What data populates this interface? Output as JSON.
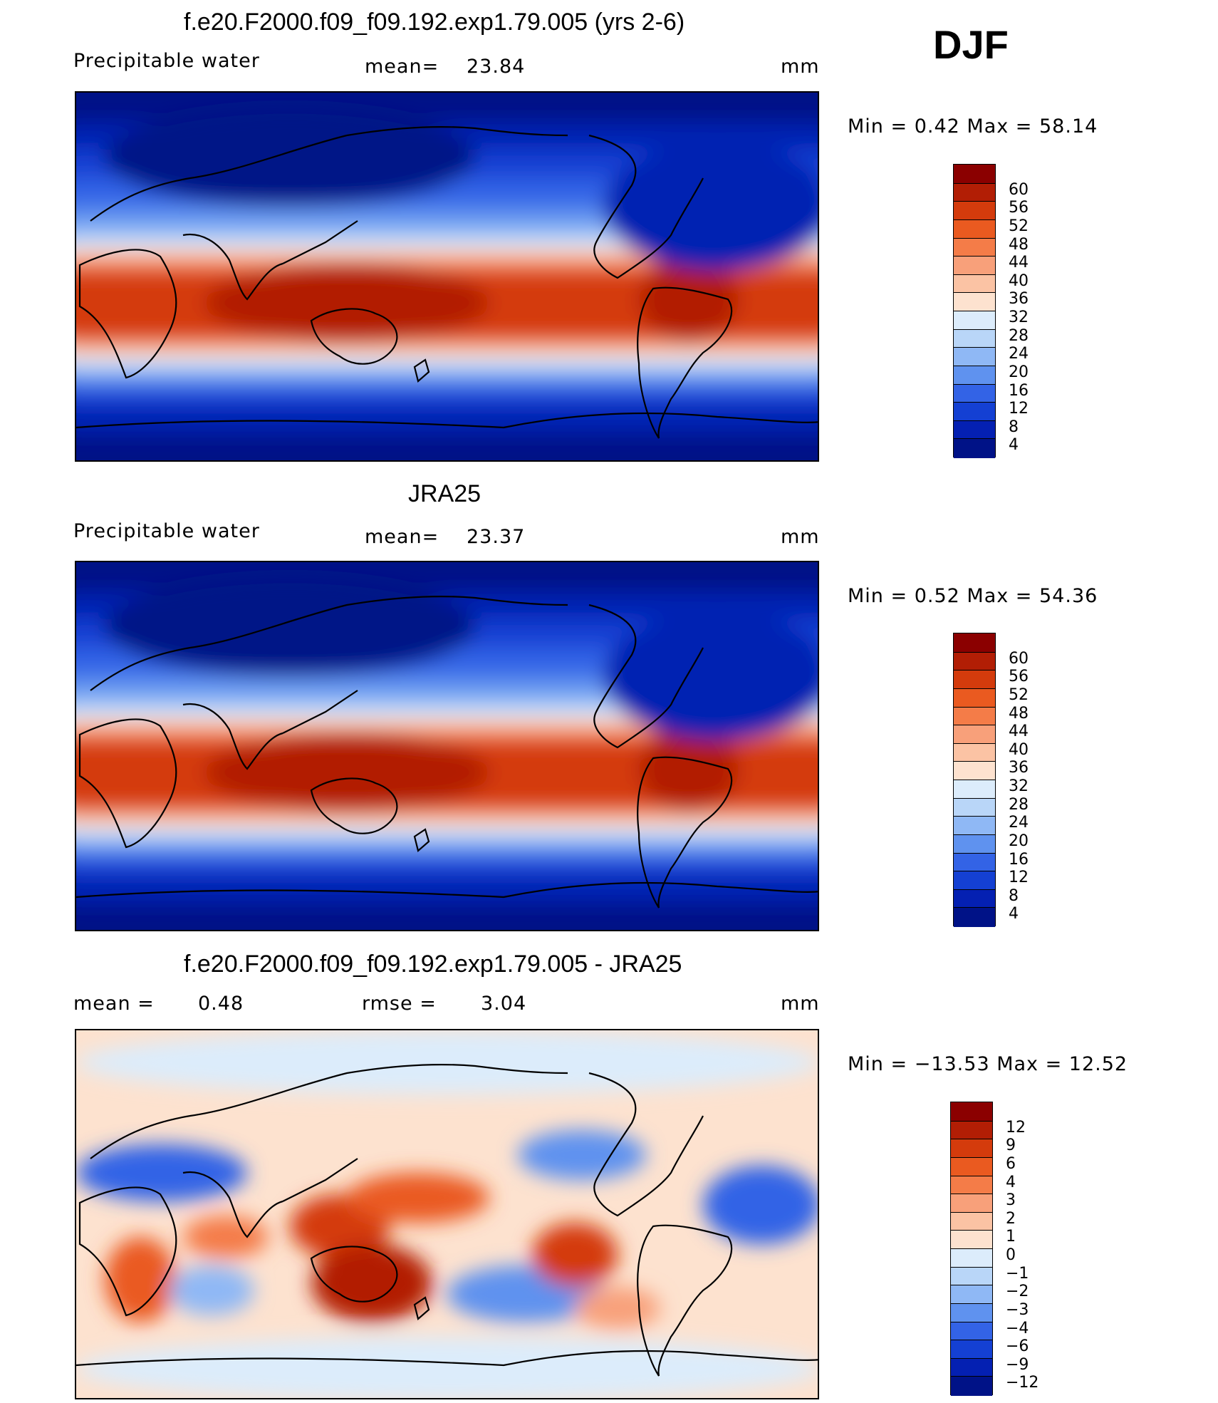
{
  "season": "DJF",
  "panels": [
    {
      "id": "model",
      "title": "f.e20.F2000.f09_f09.192.exp1.79.005 (yrs 2-6)",
      "left_label": "Precipitable  water",
      "mid_label": "mean=",
      "mid_value": "23.84",
      "units": "mm",
      "minmax_text": "Min  =     0.42  Max  =    58.14",
      "colorbar_labels": [
        "60",
        "56",
        "52",
        "48",
        "44",
        "40",
        "36",
        "32",
        "28",
        "24",
        "20",
        "16",
        "12",
        "8",
        "4"
      ],
      "colorbar_colors": [
        "#8b0000",
        "#b21e05",
        "#d43b0c",
        "#ea5a20",
        "#f47c48",
        "#f8a07a",
        "#fbc3a4",
        "#fde2cf",
        "#dcecfb",
        "#b9d6f8",
        "#8fb8f5",
        "#5f92ef",
        "#3363e6",
        "#1440d3",
        "#0420b2",
        "#001287"
      ]
    },
    {
      "id": "obs",
      "title": "JRA25",
      "left_label": "Precipitable  water",
      "mid_label": "mean=",
      "mid_value": "23.37",
      "units": "mm",
      "minmax_text": "Min  =     0.52  Max  =    54.36",
      "colorbar_labels": [
        "60",
        "56",
        "52",
        "48",
        "44",
        "40",
        "36",
        "32",
        "28",
        "24",
        "20",
        "16",
        "12",
        "8",
        "4"
      ],
      "colorbar_colors": [
        "#8b0000",
        "#b21e05",
        "#d43b0c",
        "#ea5a20",
        "#f47c48",
        "#f8a07a",
        "#fbc3a4",
        "#fde2cf",
        "#dcecfb",
        "#b9d6f8",
        "#8fb8f5",
        "#5f92ef",
        "#3363e6",
        "#1440d3",
        "#0420b2",
        "#001287"
      ]
    },
    {
      "id": "diff",
      "title": "f.e20.F2000.f09_f09.192.exp1.79.005 - JRA25",
      "left_label": "mean  =",
      "left_value": "0.48",
      "mid_label": "rmse  =",
      "mid_value": "3.04",
      "units": "mm",
      "minmax_text": "Min  = −13.53  Max  =    12.52",
      "colorbar_labels": [
        "12",
        "9",
        "6",
        "4",
        "3",
        "2",
        "1",
        "0",
        "−1",
        "−2",
        "−3",
        "−4",
        "−6",
        "−9",
        "−12"
      ],
      "colorbar_colors": [
        "#8b0000",
        "#b21e05",
        "#d43b0c",
        "#ea5a20",
        "#f47c48",
        "#f8a07a",
        "#fbc3a4",
        "#fde2cf",
        "#dcecfb",
        "#b9d6f8",
        "#8fb8f5",
        "#5f92ef",
        "#3363e6",
        "#1440d3",
        "#0420b2",
        "#001287"
      ]
    }
  ],
  "chart_data": [
    {
      "type": "heatmap",
      "title": "f.e20.F2000.f09_f09.192.exp1.79.005 (yrs 2-6)",
      "variable": "Precipitable water",
      "units": "mm",
      "mean": 23.84,
      "min": 0.42,
      "max": 58.14,
      "levels": [
        4,
        8,
        12,
        16,
        20,
        24,
        28,
        32,
        36,
        40,
        44,
        48,
        52,
        56,
        60
      ]
    },
    {
      "type": "heatmap",
      "title": "JRA25",
      "variable": "Precipitable water",
      "units": "mm",
      "mean": 23.37,
      "min": 0.52,
      "max": 54.36,
      "levels": [
        4,
        8,
        12,
        16,
        20,
        24,
        28,
        32,
        36,
        40,
        44,
        48,
        52,
        56,
        60
      ]
    },
    {
      "type": "heatmap",
      "title": "f.e20.F2000.f09_f09.192.exp1.79.005 - JRA25",
      "units": "mm",
      "mean": 0.48,
      "rmse": 3.04,
      "min": -13.53,
      "max": 12.52,
      "levels": [
        -12,
        -9,
        -6,
        -4,
        -3,
        -2,
        -1,
        0,
        1,
        2,
        3,
        4,
        6,
        9,
        12
      ]
    }
  ]
}
